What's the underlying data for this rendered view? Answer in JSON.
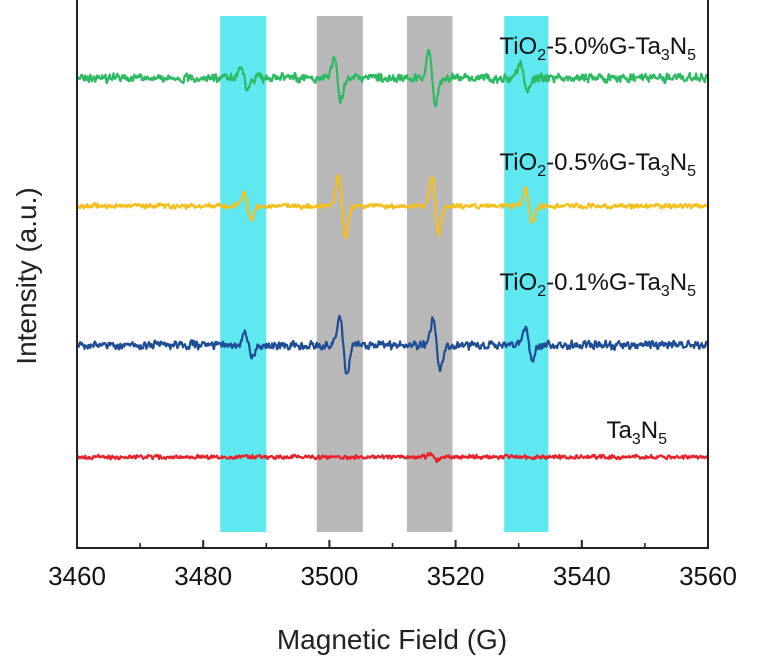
{
  "chart_data": {
    "type": "line",
    "xlabel": "Magnetic Field (G)",
    "ylabel": "Intensity (a.u.)",
    "xlim": [
      3460,
      3560
    ],
    "xticks": [
      "3460",
      "3480",
      "3500",
      "3520",
      "3540",
      "3560"
    ],
    "grid": false,
    "highlight_bands": [
      {
        "x0": 3482.7,
        "x1": 3490.0,
        "color": "#60E8F0"
      },
      {
        "x0": 3498.0,
        "x1": 3505.3,
        "color": "#B8B8B8"
      },
      {
        "x0": 3512.3,
        "x1": 3519.5,
        "color": "#B8B8B8"
      },
      {
        "x0": 3527.7,
        "x1": 3534.7,
        "color": "#60E8F0"
      }
    ],
    "series": [
      {
        "name_parts": [
          {
            "t": "TiO",
            "s": ""
          },
          {
            "t": "2",
            "s": "sub"
          },
          {
            "t": "-5.0%G-Ta",
            "s": ""
          },
          {
            "t": "3",
            "s": "sub"
          },
          {
            "t": "N",
            "s": ""
          },
          {
            "t": "5",
            "s": "sub"
          }
        ],
        "color": "#2DBA62",
        "offset": 78,
        "noise": 5.2,
        "signals": [
          {
            "x": 3486.5,
            "amp": 16
          },
          {
            "x": 3501.3,
            "amp": 30
          },
          {
            "x": 3516.3,
            "amp": 36
          },
          {
            "x": 3530.8,
            "amp": 20
          }
        ]
      },
      {
        "name_parts": [
          {
            "t": "TiO",
            "s": ""
          },
          {
            "t": "2",
            "s": "sub"
          },
          {
            "t": "-0.5%G-Ta",
            "s": ""
          },
          {
            "t": "3",
            "s": "sub"
          },
          {
            "t": "N",
            "s": ""
          },
          {
            "t": "5",
            "s": "sub"
          }
        ],
        "color": "#F5BE1A",
        "offset": 206,
        "noise": 3.0,
        "signals": [
          {
            "x": 3487.0,
            "amp": 20
          },
          {
            "x": 3502.0,
            "amp": 45
          },
          {
            "x": 3516.8,
            "amp": 42
          },
          {
            "x": 3531.6,
            "amp": 24
          }
        ]
      },
      {
        "name_parts": [
          {
            "t": "TiO",
            "s": ""
          },
          {
            "t": "2",
            "s": "sub"
          },
          {
            "t": "-0.1%G-Ta",
            "s": ""
          },
          {
            "t": "3",
            "s": "sub"
          },
          {
            "t": "N",
            "s": ""
          },
          {
            "t": "5",
            "s": "sub"
          }
        ],
        "color": "#1F4E96",
        "offset": 345,
        "noise": 5.0,
        "signals": [
          {
            "x": 3487.2,
            "amp": 18
          },
          {
            "x": 3502.2,
            "amp": 43
          },
          {
            "x": 3517.0,
            "amp": 36
          },
          {
            "x": 3531.6,
            "amp": 20
          }
        ]
      },
      {
        "name_parts": [
          {
            "t": "Ta",
            "s": ""
          },
          {
            "t": "3",
            "s": "sub"
          },
          {
            "t": "N",
            "s": ""
          },
          {
            "t": "5",
            "s": "sub"
          }
        ],
        "color": "#E8222A",
        "offset": 457,
        "noise": 2.4,
        "signals": [
          {
            "x": 3516.5,
            "amp": 4
          }
        ]
      }
    ]
  }
}
